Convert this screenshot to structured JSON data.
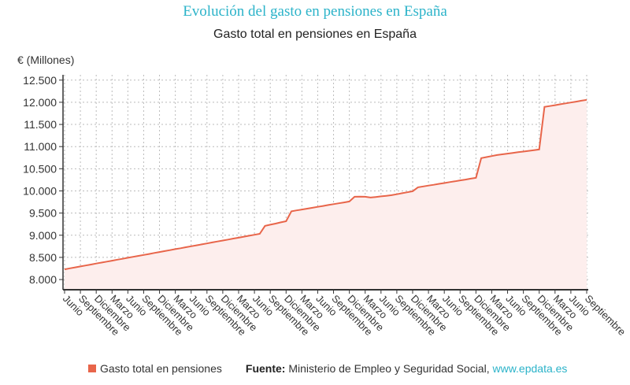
{
  "header": {
    "title": "Evolución del gasto en pensiones en España",
    "subtitle": "Gasto total en pensiones en España"
  },
  "footer": {
    "source_label": "Fuente:",
    "source_text": "Ministerio de Empleo y Seguridad Social,",
    "source_link": "www.epdata.es"
  },
  "chart_data": {
    "type": "area",
    "title": "Gasto total en pensiones en España",
    "ylabel": "€ (Millones)",
    "xlabel": "",
    "ylim": [
      7770,
      12620
    ],
    "yticks": [
      8000,
      8500,
      9000,
      9500,
      10000,
      10500,
      11000,
      11500,
      12000,
      12500
    ],
    "ytick_labels": [
      "8.000",
      "8.500",
      "9.000",
      "9.500",
      "10.000",
      "10.500",
      "11.000",
      "11.500",
      "12.000",
      "12.500"
    ],
    "x_tick_labels": [
      "Junio",
      "Septiembre",
      "Diciembre",
      "Marzo",
      "Junio",
      "Septiembre",
      "Diciembre",
      "Marzo",
      "Junio",
      "Septiembre",
      "Diciembre",
      "Marzo",
      "Junio",
      "Septiembre",
      "Diciembre",
      "Marzo",
      "Junio",
      "Septiembre",
      "Diciembre",
      "Marzo",
      "Junio",
      "Septiembre",
      "Diciembre",
      "Marzo",
      "Junio",
      "Septiembre",
      "Diciembre",
      "Marzo",
      "Junio",
      "Septiembre",
      "Diciembre",
      "Marzo",
      "Junio",
      "Septiembre"
    ],
    "x_tick_every_n_points": 3,
    "grid": true,
    "legend_position": "bottom-left",
    "series": [
      {
        "name": "Gasto total en pensiones",
        "color": "#e8654a",
        "fill": "#fdeeed",
        "values": [
          8231,
          8253,
          8274,
          8296,
          8318,
          8339,
          8361,
          8383,
          8404,
          8426,
          8448,
          8469,
          8491,
          8512,
          8534,
          8556,
          8577,
          8599,
          8621,
          8642,
          8664,
          8686,
          8707,
          8729,
          8751,
          8772,
          8794,
          8815,
          8837,
          8859,
          8880,
          8902,
          8924,
          8945,
          8967,
          8989,
          9010,
          9032,
          9210,
          9237,
          9263,
          9290,
          9316,
          9540,
          9560,
          9580,
          9600,
          9620,
          9641,
          9661,
          9681,
          9701,
          9721,
          9741,
          9761,
          9868,
          9870,
          9868,
          9850,
          9863,
          9877,
          9890,
          9903,
          9925,
          9948,
          9970,
          9992,
          10081,
          10100,
          10120,
          10139,
          10159,
          10178,
          10198,
          10217,
          10237,
          10256,
          10276,
          10295,
          10740,
          10763,
          10787,
          10810,
          10826,
          10841,
          10857,
          10873,
          10888,
          10904,
          10919,
          10935,
          11895,
          11915,
          11935,
          11955,
          11975,
          11995,
          12015,
          12035,
          12055
        ]
      }
    ]
  }
}
